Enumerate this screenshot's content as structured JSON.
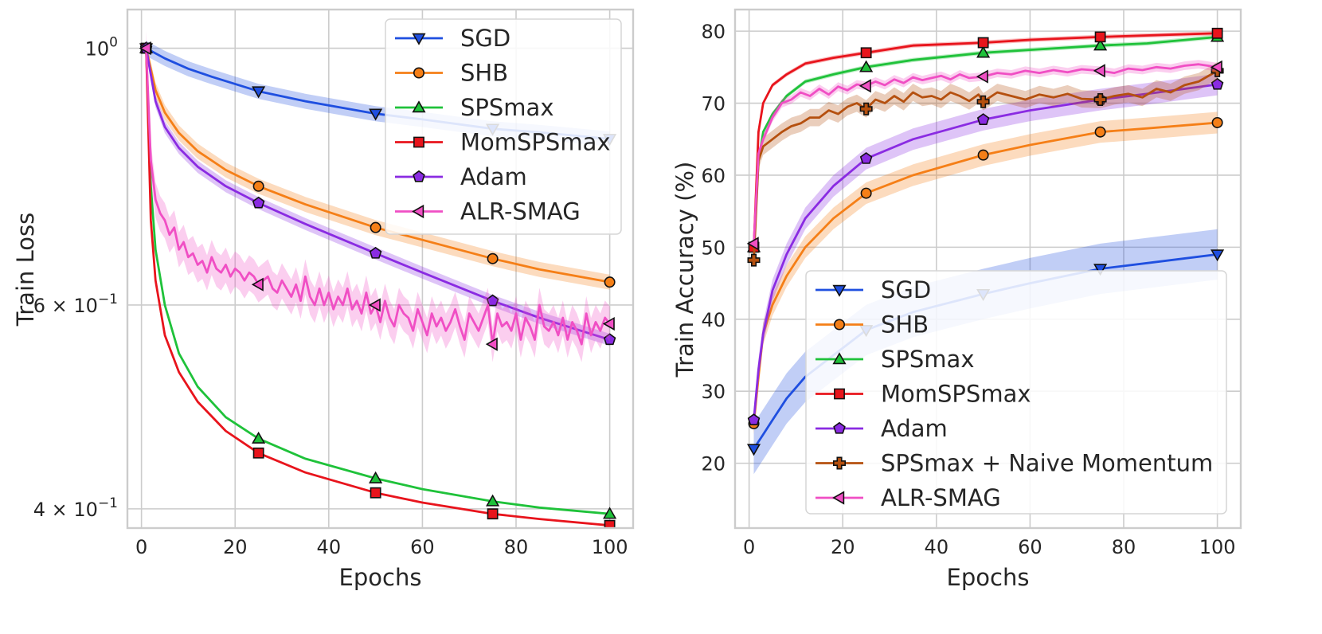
{
  "chart_data": [
    {
      "type": "line",
      "xlabel": "Epochs",
      "ylabel": "Train Loss",
      "yscale": "log",
      "xlim": [
        -3,
        105
      ],
      "ylim": [
        0.385,
        1.08
      ],
      "xticks": [
        0,
        20,
        40,
        60,
        80,
        100
      ],
      "xtick_labels": [
        "0",
        "20",
        "40",
        "60",
        "80",
        "100"
      ],
      "yticks": [
        1.0,
        0.6,
        0.4
      ],
      "ytick_labels": [
        {
          "base": "10",
          "exp": "0",
          "coef": ""
        },
        {
          "base": "10",
          "exp": "−1",
          "coef": "6 × "
        },
        {
          "base": "10",
          "exp": "−1",
          "coef": "4 × "
        }
      ],
      "grid": true,
      "legend_position": "top-right",
      "marker_x": [
        1,
        25,
        50,
        75,
        100
      ],
      "series": [
        {
          "name": "SGD",
          "color": "#1f4fe0",
          "marker": "triangle-down",
          "x": [
            1,
            5,
            10,
            15,
            25,
            35,
            50,
            60,
            75,
            85,
            100
          ],
          "values": [
            1.0,
            0.98,
            0.96,
            0.945,
            0.918,
            0.9,
            0.878,
            0.868,
            0.852,
            0.846,
            0.835
          ],
          "band": 0.015
        },
        {
          "name": "SHB",
          "color": "#f57f17",
          "marker": "circle",
          "x": [
            1,
            3,
            5,
            8,
            12,
            18,
            25,
            35,
            50,
            60,
            75,
            85,
            100
          ],
          "values": [
            1.0,
            0.92,
            0.88,
            0.845,
            0.815,
            0.785,
            0.76,
            0.733,
            0.7,
            0.683,
            0.658,
            0.644,
            0.628
          ],
          "band": 0.015
        },
        {
          "name": "SPSmax",
          "color": "#1fc23a",
          "marker": "triangle-up",
          "x": [
            1,
            2,
            3,
            5,
            8,
            12,
            18,
            25,
            35,
            50,
            60,
            75,
            85,
            100
          ],
          "values": [
            1.0,
            0.76,
            0.67,
            0.6,
            0.545,
            0.51,
            0.48,
            0.46,
            0.442,
            0.425,
            0.416,
            0.406,
            0.401,
            0.396
          ],
          "band": 0
        },
        {
          "name": "MomSPSmax",
          "color": "#e8141c",
          "marker": "square",
          "x": [
            1,
            2,
            3,
            5,
            8,
            12,
            18,
            25,
            35,
            50,
            60,
            75,
            85,
            100
          ],
          "values": [
            1.0,
            0.71,
            0.63,
            0.565,
            0.525,
            0.495,
            0.467,
            0.447,
            0.43,
            0.413,
            0.405,
            0.396,
            0.392,
            0.387
          ],
          "band": 0
        },
        {
          "name": "Adam",
          "color": "#8a2be2",
          "marker": "pentagon",
          "x": [
            1,
            3,
            5,
            8,
            12,
            18,
            25,
            35,
            50,
            60,
            75,
            85,
            100
          ],
          "values": [
            1.0,
            0.9,
            0.855,
            0.82,
            0.79,
            0.76,
            0.735,
            0.705,
            0.665,
            0.64,
            0.605,
            0.585,
            0.56
          ],
          "band": 0.012
        },
        {
          "name": "ALR-SMAG",
          "color": "#f04fc4",
          "marker": "triangle-left",
          "x": [
            1,
            2,
            3,
            4,
            5,
            6,
            7,
            8,
            9,
            10,
            11,
            12,
            13,
            14,
            15,
            16,
            17,
            18,
            19,
            20,
            21,
            22,
            23,
            24,
            25,
            26,
            27,
            28,
            29,
            30,
            31,
            32,
            33,
            34,
            35,
            36,
            37,
            38,
            39,
            40,
            41,
            42,
            43,
            44,
            45,
            46,
            47,
            48,
            49,
            50,
            51,
            52,
            53,
            54,
            55,
            56,
            57,
            58,
            59,
            60,
            61,
            62,
            63,
            64,
            65,
            66,
            67,
            68,
            69,
            70,
            71,
            72,
            73,
            74,
            75,
            76,
            77,
            78,
            79,
            80,
            81,
            82,
            83,
            84,
            85,
            86,
            87,
            88,
            89,
            90,
            91,
            92,
            93,
            94,
            95,
            96,
            97,
            98,
            99,
            100
          ],
          "values": [
            1.0,
            0.8,
            0.74,
            0.72,
            0.71,
            0.69,
            0.7,
            0.67,
            0.68,
            0.66,
            0.665,
            0.65,
            0.655,
            0.64,
            0.66,
            0.645,
            0.64,
            0.65,
            0.635,
            0.645,
            0.64,
            0.63,
            0.64,
            0.635,
            0.625,
            0.63,
            0.635,
            0.62,
            0.615,
            0.63,
            0.62,
            0.61,
            0.625,
            0.605,
            0.635,
            0.61,
            0.6,
            0.62,
            0.6,
            0.615,
            0.595,
            0.61,
            0.6,
            0.62,
            0.595,
            0.605,
            0.59,
            0.615,
            0.59,
            0.6,
            0.58,
            0.605,
            0.585,
            0.575,
            0.6,
            0.59,
            0.585,
            0.57,
            0.595,
            0.58,
            0.565,
            0.59,
            0.575,
            0.585,
            0.57,
            0.58,
            0.595,
            0.575,
            0.56,
            0.59,
            0.58,
            0.57,
            0.585,
            0.6,
            0.555,
            0.59,
            0.575,
            0.58,
            0.57,
            0.59,
            0.56,
            0.585,
            0.575,
            0.56,
            0.6,
            0.575,
            0.57,
            0.58,
            0.565,
            0.585,
            0.56,
            0.58,
            0.57,
            0.555,
            0.59,
            0.565,
            0.58,
            0.57,
            0.585,
            0.578
          ],
          "band": 0.035
        }
      ]
    },
    {
      "type": "line",
      "xlabel": "Epochs",
      "ylabel": "Train Accuracy (%)",
      "yscale": "linear",
      "xlim": [
        -3,
        105
      ],
      "ylim": [
        11,
        83
      ],
      "xticks": [
        0,
        20,
        40,
        60,
        80,
        100
      ],
      "xtick_labels": [
        "0",
        "20",
        "40",
        "60",
        "80",
        "100"
      ],
      "yticks": [
        20,
        30,
        40,
        50,
        60,
        70,
        80
      ],
      "ytick_labels": [
        "20",
        "30",
        "40",
        "50",
        "60",
        "70",
        "80"
      ],
      "grid": true,
      "legend_position": "bottom-right",
      "marker_x": [
        1,
        25,
        50,
        75,
        100
      ],
      "series": [
        {
          "name": "SGD",
          "color": "#1f4fe0",
          "marker": "triangle-down",
          "x": [
            1,
            3,
            5,
            8,
            12,
            18,
            25,
            35,
            50,
            60,
            75,
            85,
            100
          ],
          "values": [
            22,
            24,
            26,
            29,
            32,
            35,
            38.5,
            41,
            43.5,
            45,
            47,
            47.8,
            49
          ],
          "band": 3.5
        },
        {
          "name": "SHB",
          "color": "#f57f17",
          "marker": "circle",
          "x": [
            1,
            2,
            3,
            5,
            8,
            12,
            18,
            25,
            35,
            50,
            60,
            75,
            85,
            100
          ],
          "values": [
            25.5,
            32,
            38,
            42,
            46,
            50,
            54,
            57.5,
            60,
            62.8,
            64.2,
            66,
            66.5,
            67.3
          ],
          "band": 1.5
        },
        {
          "name": "SPSmax",
          "color": "#1fc23a",
          "marker": "triangle-up",
          "x": [
            1,
            2,
            3,
            5,
            8,
            12,
            18,
            25,
            35,
            50,
            60,
            75,
            85,
            100
          ],
          "values": [
            50,
            62,
            66,
            68.5,
            71,
            73,
            74,
            75,
            76,
            77,
            77.4,
            78,
            78.3,
            79.2
          ],
          "band": 0.3
        },
        {
          "name": "MomSPSmax",
          "color": "#e8141c",
          "marker": "square",
          "x": [
            1,
            2,
            3,
            5,
            8,
            12,
            18,
            25,
            35,
            50,
            60,
            75,
            85,
            100
          ],
          "values": [
            50,
            66,
            70,
            72.5,
            74,
            75.5,
            76.3,
            77,
            78,
            78.4,
            78.8,
            79.2,
            79.4,
            79.7
          ],
          "band": 0.3
        },
        {
          "name": "Adam",
          "color": "#8a2be2",
          "marker": "pentagon",
          "x": [
            1,
            2,
            3,
            5,
            8,
            12,
            18,
            25,
            35,
            50,
            60,
            75,
            85,
            100
          ],
          "values": [
            26,
            33,
            38,
            44,
            49,
            54,
            58.5,
            62.3,
            65,
            67.7,
            69,
            70.5,
            71.3,
            72.6
          ],
          "band": 1.5
        },
        {
          "name": "SPSmax + Naive Momentum",
          "color": "#b5500f",
          "marker": "plus",
          "x": [
            1,
            2,
            3,
            5,
            7,
            9,
            11,
            13,
            15,
            17,
            19,
            21,
            23,
            25,
            27,
            29,
            31,
            33,
            35,
            37,
            39,
            41,
            43,
            45,
            47,
            49,
            50,
            53,
            56,
            59,
            62,
            65,
            68,
            71,
            75,
            78,
            81,
            84,
            87,
            90,
            93,
            96,
            100
          ],
          "values": [
            48.2,
            62,
            64,
            65,
            66,
            66.8,
            67.2,
            68,
            68,
            69,
            68.5,
            69.5,
            70,
            69.2,
            70.5,
            70,
            71,
            70.2,
            71.5,
            70.8,
            71,
            70.5,
            71.5,
            71,
            70.3,
            71.2,
            70.2,
            71.5,
            71,
            70.5,
            71.2,
            70.8,
            71.3,
            70.6,
            70.5,
            71,
            71.3,
            70.8,
            72,
            71.5,
            72.5,
            73,
            74.5
          ],
          "band": 1.2
        },
        {
          "name": "ALR-SMAG",
          "color": "#f04fc4",
          "marker": "triangle-left",
          "x": [
            1,
            2,
            3,
            5,
            7,
            9,
            11,
            13,
            15,
            17,
            19,
            21,
            23,
            25,
            27,
            29,
            31,
            33,
            35,
            37,
            39,
            41,
            43,
            45,
            47,
            50,
            53,
            56,
            59,
            62,
            65,
            68,
            71,
            75,
            78,
            81,
            84,
            87,
            90,
            93,
            96,
            100
          ],
          "values": [
            50.5,
            63,
            65,
            68,
            70,
            70.5,
            71.5,
            71,
            72,
            71.2,
            72.3,
            71.8,
            72.6,
            72.4,
            73,
            72.5,
            73.3,
            72.8,
            73.6,
            73.2,
            73.5,
            73.8,
            73.3,
            74,
            73.5,
            73.7,
            74.2,
            74,
            74.5,
            74.2,
            74.6,
            74.3,
            74.7,
            74.5,
            74.2,
            74.8,
            74.6,
            75,
            74.8,
            75.2,
            75.4,
            75
          ],
          "band": 0.6
        }
      ]
    }
  ]
}
